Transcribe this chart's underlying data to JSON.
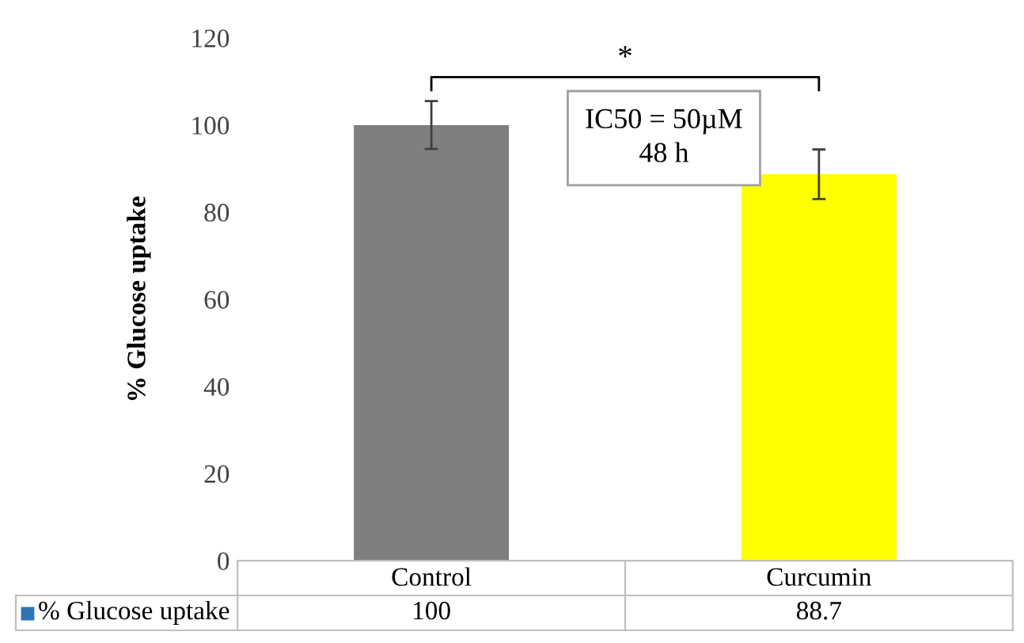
{
  "chart_data": {
    "type": "bar",
    "ylabel": "% Glucose uptake",
    "categories": [
      "Control",
      "Curcumin"
    ],
    "series": [
      {
        "name": "% Glucose uptake",
        "color": "#2e75b6",
        "colors": [
          "#7f7f7f",
          "#ffff00"
        ],
        "values": [
          100,
          88.7
        ],
        "errors": [
          5.5,
          5.7
        ]
      }
    ],
    "ylim": [
      0,
      120
    ],
    "yticks": [
      0,
      20,
      40,
      60,
      80,
      100,
      120
    ],
    "grid": false,
    "legend": "bottom",
    "data_labels": true,
    "annotations": [
      "*",
      "IC50 = 50µM\n48 h"
    ]
  }
}
